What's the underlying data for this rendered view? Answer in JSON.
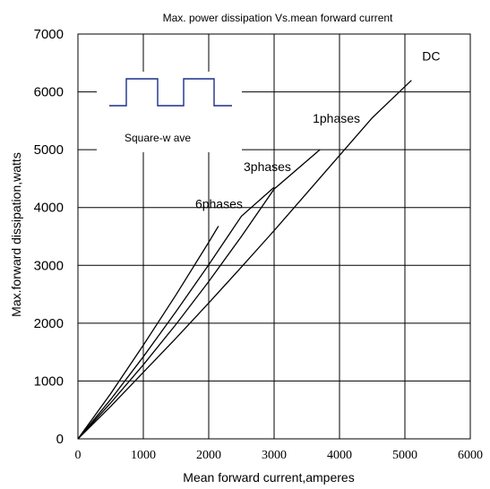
{
  "chart_data": {
    "type": "line",
    "title": "Max. power dissipation Vs.mean forward current",
    "xlabel": "Mean forward current,amperes",
    "ylabel": "Max.forward dissipation,watts",
    "xlim": [
      0,
      6000
    ],
    "ylim": [
      0,
      7000
    ],
    "xticks": [
      0,
      1000,
      2000,
      3000,
      4000,
      5000,
      6000
    ],
    "yticks": [
      0,
      1000,
      2000,
      3000,
      4000,
      5000,
      6000,
      7000
    ],
    "grid": true,
    "series": [
      {
        "name": "DC",
        "x": [
          0,
          500,
          1000,
          1500,
          2000,
          2500,
          3000,
          3500,
          4000,
          4500,
          5100
        ],
        "y": [
          0,
          560,
          1150,
          1740,
          2350,
          2970,
          3600,
          4250,
          4900,
          5550,
          6200
        ]
      },
      {
        "name": "1phases",
        "x": [
          0,
          500,
          1000,
          1500,
          2000,
          2500,
          3000,
          3700
        ],
        "y": [
          0,
          620,
          1280,
          1980,
          2720,
          3500,
          4320,
          5000
        ]
      },
      {
        "name": "3phases",
        "x": [
          0,
          500,
          1000,
          1500,
          2000,
          2500,
          3000
        ],
        "y": [
          0,
          680,
          1420,
          2200,
          3010,
          3850,
          4350
        ]
      },
      {
        "name": "6phases",
        "x": [
          0,
          500,
          1000,
          1500,
          2000,
          2150
        ],
        "y": [
          0,
          780,
          1620,
          2490,
          3400,
          3680
        ]
      }
    ],
    "inset": {
      "label": "Square-w ave",
      "color": "#1a2f8a"
    }
  }
}
